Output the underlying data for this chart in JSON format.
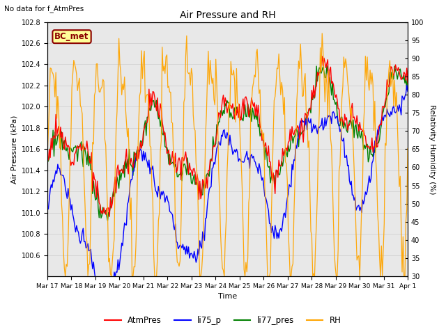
{
  "title": "Air Pressure and RH",
  "top_left_text": "No data for f_AtmPres",
  "xlabel": "Time",
  "ylabel_left": "Air Pressure (kPa)",
  "ylabel_right": "Relativity Humidity (%)",
  "ylim_left": [
    100.4,
    102.8
  ],
  "ylim_right": [
    30,
    100
  ],
  "yticks_left": [
    100.6,
    100.8,
    101.0,
    101.2,
    101.4,
    101.6,
    101.8,
    102.0,
    102.2,
    102.4,
    102.6,
    102.8
  ],
  "yticks_right": [
    30,
    35,
    40,
    45,
    50,
    55,
    60,
    65,
    70,
    75,
    80,
    85,
    90,
    95,
    100
  ],
  "xtick_labels": [
    "Mar 17",
    "Mar 18",
    "Mar 19",
    "Mar 20",
    "Mar 21",
    "Mar 22",
    "Mar 23",
    "Mar 24",
    "Mar 25",
    "Mar 26",
    "Mar 27",
    "Mar 28",
    "Mar 29",
    "Mar 30",
    "Mar 31",
    "Apr 1"
  ],
  "legend_entries": [
    "AtmPres",
    "li75_p",
    "li77_pres",
    "RH"
  ],
  "line_colors": {
    "AtmPres": "red",
    "li75_p": "blue",
    "li77_pres": "green",
    "RH": "orange"
  },
  "bc_met_label": "BC_met",
  "bc_met_color": "#8B0000",
  "bc_met_bg": "#FFFF99",
  "grid_color": "#cccccc",
  "bg_color": "#e8e8e8"
}
